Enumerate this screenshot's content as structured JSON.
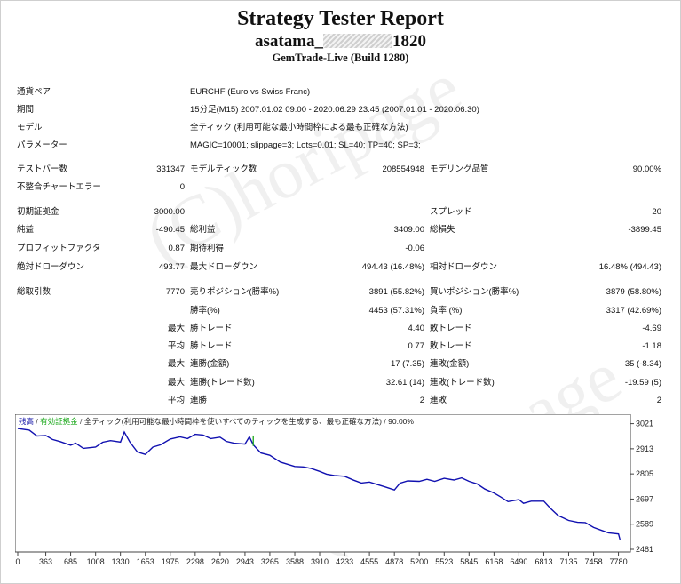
{
  "header": {
    "title": "Strategy Tester Report",
    "account_prefix": "asatama_",
    "account_suffix": "1820",
    "server": "GemTrade-Live (Build 1280)"
  },
  "info": {
    "currency_label": "通貨ペア",
    "currency_value": "EURCHF (Euro vs Swiss Franc)",
    "period_label": "期間",
    "period_value": "15分足(M15) 2007.01.02 09:00 - 2020.06.29 23:45 (2007.01.01 - 2020.06.30)",
    "model_label": "モデル",
    "model_value": "全ティック (利用可能な最小時間枠による最も正確な方法)",
    "params_label": "パラメーター",
    "params_value": "MAGIC=10001; slippage=3; Lots=0.01; SL=40; TP=40; SP=3;"
  },
  "stats": {
    "bars_label": "テストバー数",
    "bars_value": "331347",
    "ticks_label": "モデルティック数",
    "ticks_value": "208554948",
    "quality_label": "モデリング品質",
    "quality_value": "90.00%",
    "errors_label": "不整合チャートエラー",
    "errors_value": "0",
    "deposit_label": "初期証拠金",
    "deposit_value": "3000.00",
    "spread_label": "スプレッド",
    "spread_value": "20",
    "net_label": "純益",
    "net_value": "-490.45",
    "gross_profit_label": "総利益",
    "gross_profit_value": "3409.00",
    "gross_loss_label": "総損失",
    "gross_loss_value": "-3899.45",
    "pf_label": "プロフィットファクタ",
    "pf_value": "0.87",
    "expected_label": "期待利得",
    "expected_value": "-0.06",
    "abs_dd_label": "絶対ドローダウン",
    "abs_dd_value": "493.77",
    "max_dd_label": "最大ドローダウン",
    "max_dd_value": "494.43 (16.48%)",
    "rel_dd_label": "相対ドローダウン",
    "rel_dd_value": "16.48% (494.43)",
    "total_trades_label": "総取引数",
    "total_trades_value": "7770",
    "short_label": "売りポジション(勝率%)",
    "short_value": "3891 (55.82%)",
    "long_label": "買いポジション(勝率%)",
    "long_value": "3879 (58.80%)",
    "winrate_label": "勝率(%)",
    "winrate_value": "4453 (57.31%)",
    "lossrate_label": "負率 (%)",
    "lossrate_value": "3317 (42.69%)",
    "max": "最大",
    "avg": "平均",
    "largest_win_label": "勝トレード",
    "largest_win_value": "4.40",
    "largest_loss_label": "敗トレード",
    "largest_loss_value": "-4.69",
    "avg_win_label": "勝トレード",
    "avg_win_value": "0.77",
    "avg_loss_label": "敗トレード",
    "avg_loss_value": "-1.18",
    "cons_wins_label": "連勝(金額)",
    "cons_wins_value": "17 (7.35)",
    "cons_losses_label": "連敗(金額)",
    "cons_losses_value": "35 (-8.34)",
    "cons_profit_label": "連勝(トレード数)",
    "cons_profit_value": "32.61 (14)",
    "cons_loss_label": "連敗(トレード数)",
    "cons_loss_value": "-19.59 (5)",
    "avg_cons_wins_label": "連勝",
    "avg_cons_wins_value": "2",
    "avg_cons_losses_label": "連敗",
    "avg_cons_losses_value": "2"
  },
  "watermark": {
    "text": "(C)horipage"
  },
  "chart_legend": {
    "balance": "残高",
    "sep1": "/",
    "volume": "有効証拠金",
    "sep2": "/",
    "model": "全ティック(利用可能な最小時間枠を使いすべてのティックを生成する、最も正確な方法)",
    "sep3": "/",
    "quality": "90.00%"
  },
  "colors": {
    "line": "#1010b0",
    "accent_green": "#1aa81a",
    "legend_blue": "#2b2bb0"
  },
  "chart_data": {
    "type": "line",
    "x_ticks": [
      "0",
      "363",
      "685",
      "1008",
      "1330",
      "1653",
      "1975",
      "2298",
      "2620",
      "2943",
      "3265",
      "3588",
      "3910",
      "4233",
      "4555",
      "4878",
      "5200",
      "5523",
      "5845",
      "6168",
      "6490",
      "6813",
      "7135",
      "7458",
      "7780"
    ],
    "y_ticks": [
      "3021",
      "2913",
      "2805",
      "2697",
      "2589",
      "2481"
    ],
    "xlim": [
      0,
      7900
    ],
    "ylim": [
      2481,
      3050
    ],
    "series": [
      {
        "x": [
          0,
          150,
          250,
          363,
          450,
          550,
          685,
          750,
          850,
          1008,
          1100,
          1200,
          1330,
          1380,
          1450,
          1550,
          1653,
          1750,
          1850,
          1975,
          2100,
          2200,
          2298,
          2400,
          2500,
          2620,
          2700,
          2800,
          2943,
          3000,
          3050,
          3100,
          3150,
          3265,
          3400,
          3588,
          3700,
          3800,
          3910,
          4000,
          4100,
          4233,
          4350,
          4450,
          4555,
          4650,
          4750,
          4878,
          4950,
          5050,
          5200,
          5300,
          5400,
          5523,
          5650,
          5750,
          5845,
          5950,
          6050,
          6168,
          6250,
          6350,
          6490,
          6550,
          6650,
          6813,
          6900,
          7000,
          7135,
          7250,
          7350,
          7458,
          7550,
          7650,
          7780,
          7800
        ],
        "y": [
          3000,
          2993,
          2968,
          2970,
          2953,
          2944,
          2928,
          2937,
          2915,
          2920,
          2941,
          2948,
          2942,
          2985,
          2943,
          2899,
          2889,
          2920,
          2930,
          2955,
          2964,
          2957,
          2975,
          2972,
          2957,
          2963,
          2945,
          2937,
          2933,
          2965,
          2930,
          2912,
          2895,
          2885,
          2856,
          2837,
          2835,
          2828,
          2816,
          2804,
          2798,
          2795,
          2778,
          2766,
          2770,
          2760,
          2750,
          2736,
          2765,
          2775,
          2773,
          2782,
          2773,
          2786,
          2779,
          2788,
          2773,
          2762,
          2740,
          2723,
          2707,
          2686,
          2695,
          2679,
          2688,
          2688,
          2657,
          2626,
          2605,
          2597,
          2596,
          2575,
          2564,
          2552,
          2547,
          2523
        ]
      }
    ]
  }
}
